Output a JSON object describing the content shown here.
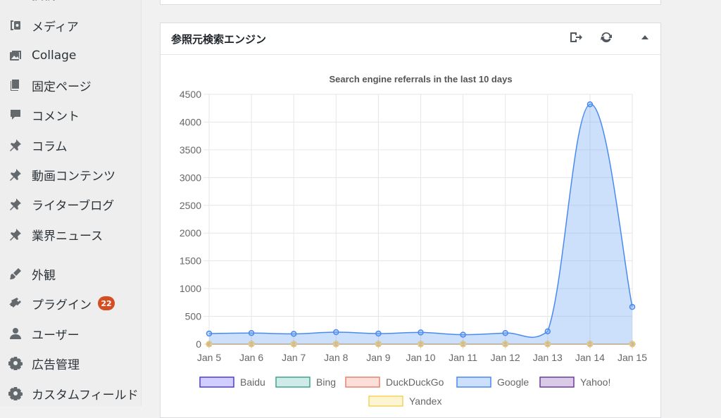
{
  "sidebar": {
    "items": [
      {
        "label": "投稿",
        "icon": "pin-icon"
      },
      {
        "label": "メディア",
        "icon": "media-icon"
      },
      {
        "label": "Collage",
        "icon": "gallery-icon"
      },
      {
        "label": "固定ページ",
        "icon": "page-icon"
      },
      {
        "label": "コメント",
        "icon": "comment-icon"
      },
      {
        "label": "コラム",
        "icon": "pin-icon"
      },
      {
        "label": "動画コンテンツ",
        "icon": "pin-icon"
      },
      {
        "label": "ライターブログ",
        "icon": "pin-icon"
      },
      {
        "label": "業界ニュース",
        "icon": "pin-icon"
      },
      {
        "label": "外観",
        "icon": "brush-icon"
      },
      {
        "label": "プラグイン",
        "icon": "plugin-icon",
        "badge": "22"
      },
      {
        "label": "ユーザー",
        "icon": "user-icon"
      },
      {
        "label": "広告管理",
        "icon": "gear-icon"
      },
      {
        "label": "カスタムフィールド",
        "icon": "gear-icon"
      }
    ]
  },
  "widget": {
    "title": "参照元検索エンジン",
    "buttons": [
      "export-icon",
      "refresh-icon",
      "collapse-arrow-icon"
    ]
  },
  "chart_data": {
    "type": "line",
    "title": "Search engine referrals in the last 10 days",
    "categories": [
      "Jan 5",
      "Jan 6",
      "Jan 7",
      "Jan 8",
      "Jan 9",
      "Jan 10",
      "Jan 11",
      "Jan 12",
      "Jan 13",
      "Jan 14",
      "Jan 15"
    ],
    "ylim": [
      0,
      4500
    ],
    "yticks": [
      "0",
      "500",
      "1000",
      "1500",
      "2000",
      "2500",
      "3000",
      "3500",
      "4000",
      "4500"
    ],
    "grid": true,
    "legend_position": "bottom",
    "series": [
      {
        "name": "Baidu",
        "color": "#4b3bdb",
        "fill": "rgba(102,90,255,0.3)",
        "values": [
          0,
          0,
          0,
          0,
          0,
          0,
          0,
          0,
          0,
          0,
          0
        ]
      },
      {
        "name": "Bing",
        "color": "#3aa594",
        "fill": "rgba(100,190,175,0.3)",
        "values": [
          0,
          0,
          0,
          0,
          0,
          0,
          0,
          0,
          0,
          0,
          0
        ]
      },
      {
        "name": "DuckDuckGo",
        "color": "#e6846e",
        "fill": "rgba(245,150,130,0.3)",
        "values": [
          0,
          0,
          0,
          0,
          0,
          0,
          0,
          0,
          0,
          0,
          0
        ]
      },
      {
        "name": "Google",
        "color": "#4a8af0",
        "fill": "rgba(120,170,245,0.38)",
        "values": [
          190,
          200,
          185,
          215,
          190,
          210,
          170,
          200,
          230,
          4320,
          670
        ]
      },
      {
        "name": "Yahoo!",
        "color": "#6b3d99",
        "fill": "rgba(130,80,170,0.3)",
        "values": [
          0,
          0,
          0,
          0,
          0,
          0,
          0,
          0,
          0,
          0,
          0
        ]
      },
      {
        "name": "Yandex",
        "color": "#f2d35b",
        "fill": "rgba(250,230,140,0.4)",
        "values": [
          0,
          0,
          0,
          0,
          0,
          0,
          0,
          0,
          0,
          0,
          0
        ]
      }
    ]
  }
}
